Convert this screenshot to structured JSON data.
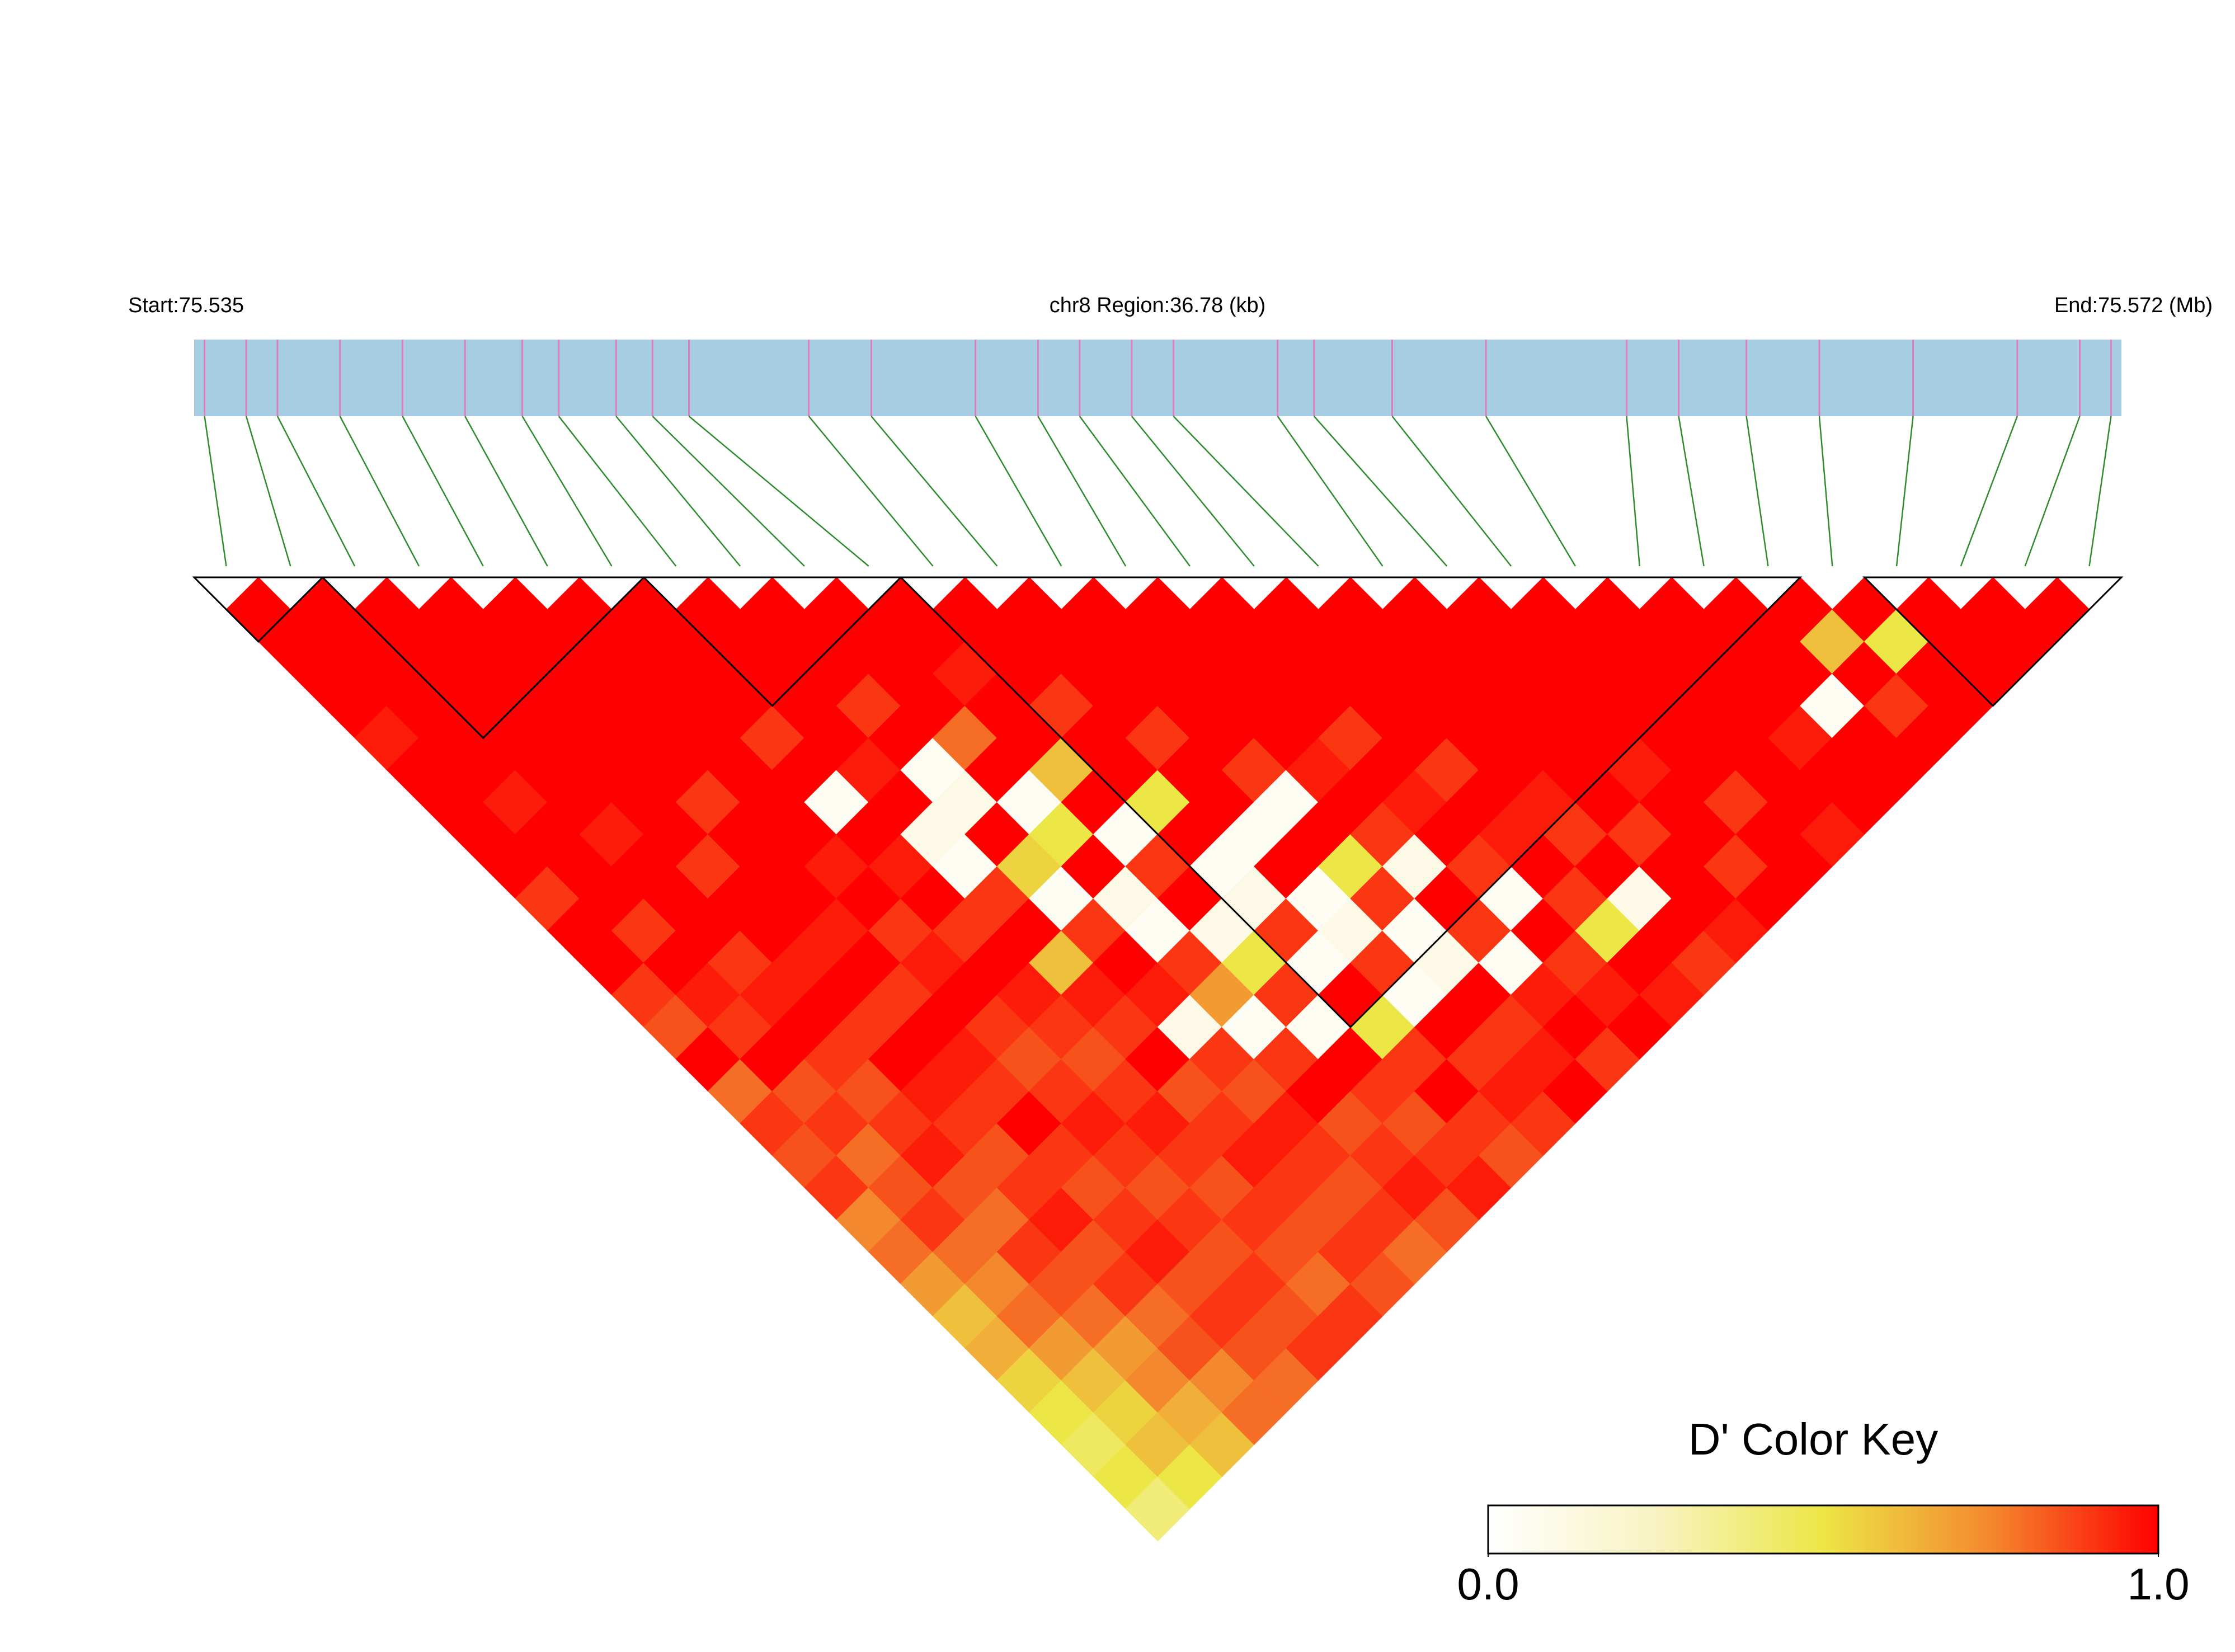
{
  "chart_data": {
    "type": "ld_heatmap",
    "start_label": "Start:75.535",
    "title": "chr8 Region:36.78 (kb)",
    "end_label": "End:75.572 (Mb)",
    "xlim": [
      75.535,
      75.572
    ],
    "positions": [
      75.5352,
      75.536,
      75.5366,
      75.5378,
      75.539,
      75.5402,
      75.5413,
      75.542,
      75.5431,
      75.5438,
      75.5445,
      75.5468,
      75.548,
      75.55,
      75.5512,
      75.552,
      75.553,
      75.5538,
      75.5558,
      75.5565,
      75.558,
      75.5598,
      75.5625,
      75.5635,
      75.5648,
      75.5662,
      75.568,
      75.57,
      75.5712,
      75.5718
    ],
    "values": [
      [
        1,
        1,
        1,
        1,
        0.95,
        1,
        1,
        1,
        1,
        0.9,
        1,
        1,
        0.9,
        0.85,
        1,
        0.8,
        0.9,
        0.85,
        0.9,
        0.75,
        0.8,
        0.7,
        0.6,
        0.65,
        0.55,
        0.5,
        0.45,
        0.5,
        0.4
      ],
      [
        1,
        1,
        1,
        1,
        1,
        1,
        0.95,
        1,
        1,
        1,
        0.9,
        1,
        0.95,
        0.9,
        1,
        0.85,
        0.9,
        0.8,
        0.85,
        0.9,
        0.8,
        0.75,
        0.8,
        0.7,
        0.6,
        0.55,
        0.6,
        0.5
      ],
      [
        1,
        1,
        1,
        1,
        1,
        1,
        1,
        0.95,
        1,
        1,
        1,
        0.9,
        0.95,
        1,
        0.9,
        0.85,
        0.9,
        0.95,
        0.85,
        0.8,
        0.9,
        0.85,
        0.8,
        0.7,
        0.75,
        0.65,
        0.6
      ],
      [
        1,
        1,
        1,
        1,
        1,
        1,
        1,
        1,
        0.9,
        1,
        1,
        0.95,
        1,
        0.9,
        1,
        0.95,
        0.9,
        0.85,
        0.9,
        0.95,
        0.85,
        0.9,
        0.8,
        0.85,
        0.75,
        0.8
      ],
      [
        1,
        1,
        1,
        1,
        1,
        1,
        0.9,
        1,
        1,
        1,
        0.95,
        1,
        0.9,
        1,
        0.95,
        0.9,
        1,
        0.9,
        0.85,
        0.9,
        0.95,
        0.85,
        0.9,
        0.85,
        0.8
      ],
      [
        1,
        1,
        1,
        1,
        1,
        1,
        1,
        1,
        0.95,
        1,
        0.9,
        0.95,
        1,
        0.9,
        0.85,
        0.9,
        0.95,
        0.9,
        0.85,
        0.9,
        0.85,
        0.9,
        0.85,
        0.9
      ],
      [
        1,
        1,
        1,
        1,
        0.9,
        1,
        0.05,
        1,
        0.95,
        1,
        0.9,
        1,
        0.95,
        0.9,
        0.85,
        0.9,
        0.95,
        0.9,
        0.85,
        0.9,
        0.85,
        0.8,
        0.9
      ],
      [
        1,
        1,
        1,
        1,
        1,
        0.95,
        1,
        0.1,
        0.05,
        0.9,
        1,
        0.6,
        0.95,
        0.9,
        1,
        0.85,
        0.9,
        0.95,
        0.9,
        0.85,
        0.9,
        0.85
      ],
      [
        1,
        1,
        1,
        0.9,
        1,
        0.05,
        0.1,
        1,
        0.55,
        0.05,
        0.9,
        1,
        0.95,
        0.1,
        0.9,
        0.85,
        0.95,
        0.9,
        0.85,
        0.9,
        0.8
      ],
      [
        1,
        1,
        1,
        1,
        0.8,
        1,
        0.05,
        0.5,
        1,
        0.1,
        0.05,
        0.9,
        0.7,
        0.05,
        0.9,
        1,
        0.85,
        0.9,
        0.95,
        0.85
      ],
      [
        1,
        1,
        0.95,
        1,
        1,
        0.6,
        1,
        0.05,
        0.9,
        1,
        0.1,
        0.5,
        0.9,
        0.05,
        1,
        0.9,
        0.85,
        0.9,
        0.95
      ],
      [
        1,
        1,
        1,
        0.9,
        1,
        1,
        0.5,
        1,
        0.05,
        0.1,
        0.9,
        0.05,
        1,
        0.5,
        0.9,
        1,
        0.9,
        0.85
      ],
      [
        1,
        1,
        1,
        1,
        0.9,
        1,
        1,
        0.05,
        1,
        0.05,
        0.1,
        0.9,
        0.05,
        1,
        0.9,
        0.95,
        0.9
      ],
      [
        1,
        1,
        1,
        1,
        1,
        0.9,
        0.05,
        1,
        0.5,
        0.9,
        0.05,
        0.1,
        1,
        0.9,
        0.95,
        1
      ],
      [
        1,
        1,
        1,
        1,
        1,
        0.95,
        1,
        0.9,
        0.1,
        1,
        0.9,
        0.05,
        0.95,
        1,
        0.9
      ],
      [
        1,
        1,
        1,
        1,
        0.9,
        1,
        0.95,
        1,
        0.9,
        0.05,
        1,
        0.9,
        0.95,
        1
      ],
      [
        1,
        1,
        1,
        1,
        1,
        0.9,
        1,
        0.95,
        1,
        0.9,
        0.5,
        1,
        0.95
      ],
      [
        1,
        1,
        1,
        1,
        1,
        1,
        0.95,
        0.9,
        1,
        0.1,
        1,
        0.9
      ],
      [
        1,
        1,
        1,
        1,
        1,
        1,
        1,
        0.9,
        1,
        1,
        0.95
      ],
      [
        1,
        1,
        1,
        1,
        1,
        0.95,
        1,
        1,
        0.9,
        1
      ],
      [
        1,
        1,
        1,
        1,
        1,
        1,
        0.9,
        1,
        1
      ],
      [
        1,
        1,
        1,
        1,
        1,
        1,
        1,
        0.95
      ],
      [
        1,
        1,
        1,
        1,
        0.95,
        1,
        1
      ],
      [
        1,
        1,
        1,
        0.05,
        1,
        1
      ],
      [
        1,
        0.6,
        1,
        0.9,
        1
      ],
      [
        1,
        0.5,
        1,
        1
      ],
      [
        1,
        1,
        1
      ],
      [
        1,
        1
      ],
      [
        1
      ]
    ],
    "blocks": [
      [
        0,
        1
      ],
      [
        2,
        6
      ],
      [
        7,
        10
      ],
      [
        11,
        24
      ],
      [
        26,
        29
      ]
    ],
    "colorscale": [
      "#ffffff",
      "#f8f3c2",
      "#ece646",
      "#f4882e",
      "#ff0000"
    ],
    "bar_color": "#a6cde2",
    "snp_line_color": "#e07cc0",
    "connector_color": "#2e8b2e",
    "block_color": "#000000",
    "key_title": "D' Color Key",
    "key_lim": [
      0,
      1
    ],
    "key_ticks": [
      {
        "value": 0,
        "label": "0.0"
      },
      {
        "value": 1,
        "label": "1.0"
      }
    ]
  }
}
